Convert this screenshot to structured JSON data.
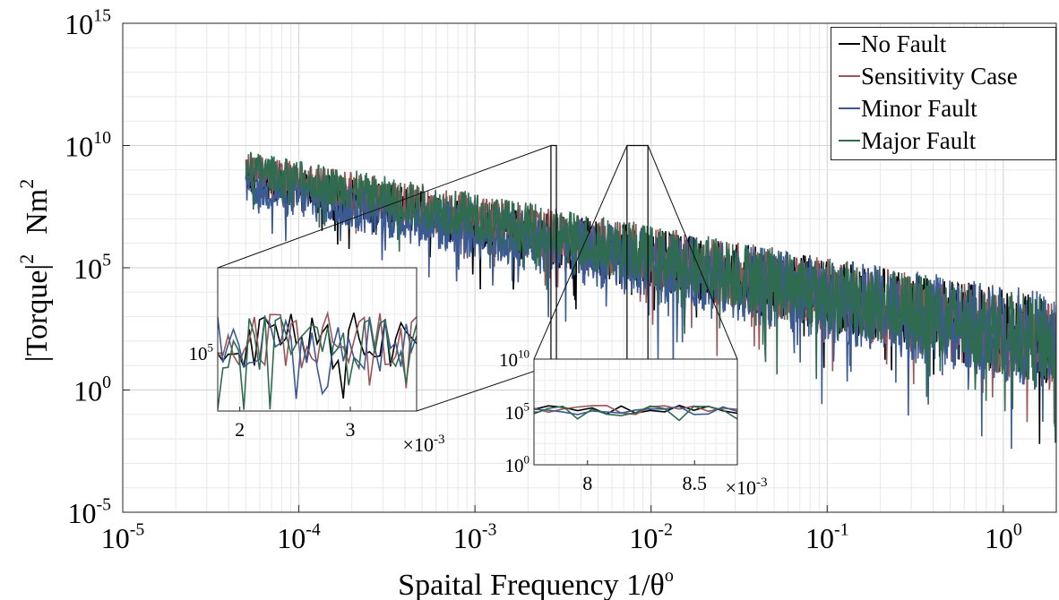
{
  "chart_data": {
    "type": "line",
    "xscale": "log",
    "yscale": "log",
    "xlim": [
      1e-05,
      2
    ],
    "ylim": [
      1e-05,
      1000000000000000
    ],
    "grid": true,
    "xlabel": "Spaital Frequency 1/θ",
    "xlabel_sup": "o",
    "ylabel": "|Torque|",
    "ylabel_sup": "2",
    "ylabel_unit": "Nm",
    "ylabel_unit_sup": "2",
    "xticks": [
      {
        "value": 1e-05,
        "base": "10",
        "exp": "-5"
      },
      {
        "value": 0.0001,
        "base": "10",
        "exp": "-4"
      },
      {
        "value": 0.001,
        "base": "10",
        "exp": "-3"
      },
      {
        "value": 0.01,
        "base": "10",
        "exp": "-2"
      },
      {
        "value": 0.1,
        "base": "10",
        "exp": "-1"
      },
      {
        "value": 1,
        "base": "10",
        "exp": "0"
      }
    ],
    "yticks": [
      {
        "value": 1e-05,
        "base": "10",
        "exp": "-5"
      },
      {
        "value": 1,
        "base": "10",
        "exp": "0"
      },
      {
        "value": 100000,
        "base": "10",
        "exp": "5"
      },
      {
        "value": 10000000000,
        "base": "10",
        "exp": "10"
      },
      {
        "value": 1000000000000000,
        "base": "10",
        "exp": "15"
      }
    ],
    "legend_position": "top-right",
    "series": [
      {
        "name": "No Fault",
        "color": "#000000",
        "trend": {
          "x_start": 5e-05,
          "y_start_log10": 8.7,
          "x_end": 2,
          "y_end_log10": 2.0,
          "noise_log10": 0.7
        }
      },
      {
        "name": "Sensitivity Case",
        "color": "#9b5458",
        "trend": {
          "x_start": 5e-05,
          "y_start_log10": 9.0,
          "x_end": 2,
          "y_end_log10": 1.9,
          "noise_log10": 0.7
        }
      },
      {
        "name": "Minor Fault",
        "color": "#3c5a92",
        "trend": {
          "x_start": 5e-05,
          "y_start_log10": 8.3,
          "x_end": 2,
          "y_end_log10": 1.9,
          "noise_log10": 0.8
        }
      },
      {
        "name": "Major Fault",
        "color": "#2e6b4f",
        "trend": {
          "x_start": 5e-05,
          "y_start_log10": 9.1,
          "x_end": 2,
          "y_end_log10": 1.9,
          "noise_log10": 0.7
        }
      }
    ],
    "insets": [
      {
        "id": "inset-1",
        "source_xrange": [
          0.0027,
          0.0029
        ],
        "source_yrange": [
          10,
          10000000000
        ],
        "xlim": [
          1.8,
          3.6
        ],
        "ylim_log10": [
          3.5,
          7.2
        ],
        "xticks": [
          "2",
          "3"
        ],
        "x_multiplier": "×10",
        "x_multiplier_exp": "-3",
        "yticks": [
          {
            "base": "10",
            "exp": "5"
          }
        ]
      },
      {
        "id": "inset-2",
        "source_xrange": [
          0.0073,
          0.0096
        ],
        "source_yrange": [
          10,
          10000000000
        ],
        "xlim": [
          7.75,
          8.7
        ],
        "ylim_log10": [
          0,
          10
        ],
        "xticks": [
          "8",
          "8.5"
        ],
        "x_multiplier": "×10",
        "x_multiplier_exp": "-3",
        "yticks": [
          {
            "base": "10",
            "exp": "10"
          },
          {
            "base": "10",
            "exp": "5"
          },
          {
            "base": "10",
            "exp": "0"
          }
        ]
      }
    ]
  }
}
